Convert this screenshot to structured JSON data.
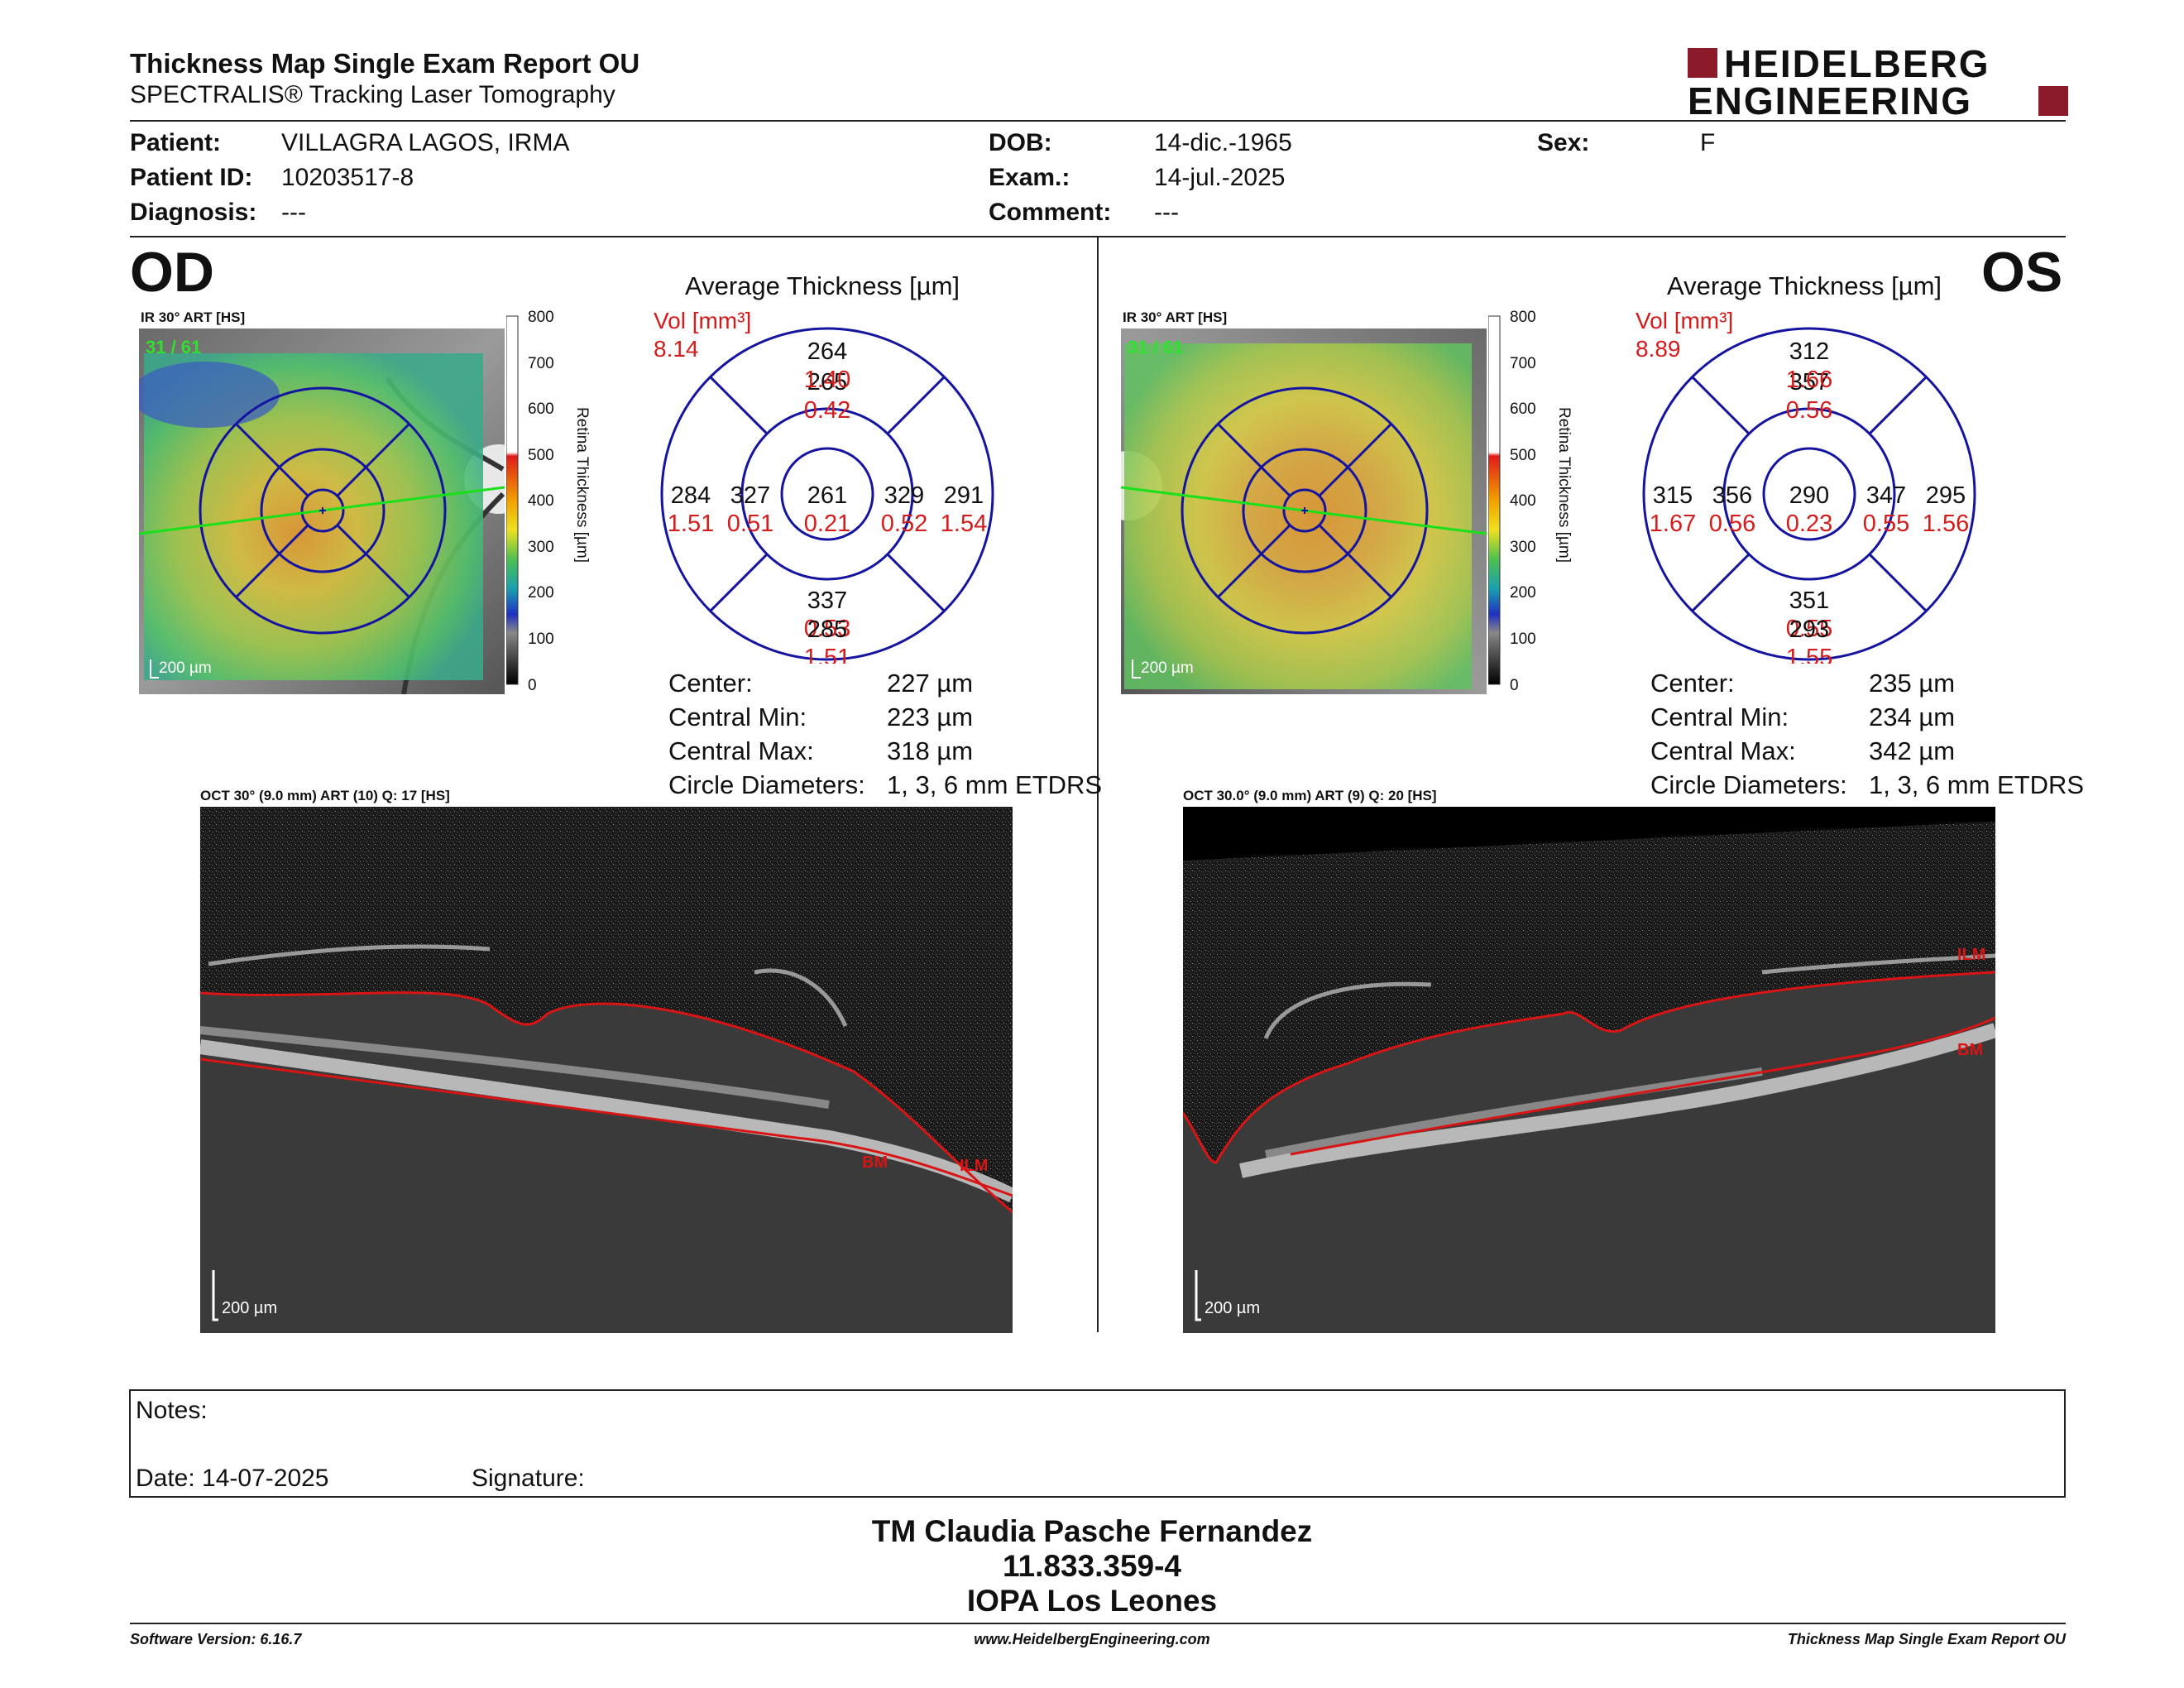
{
  "header": {
    "title": "Thickness Map Single Exam Report OU",
    "subtitle": "SPECTRALIS® Tracking Laser Tomography",
    "logo_line1": "HEIDELBERG",
    "logo_line2": "ENGINEERING",
    "brand_color": "#8b1a2b"
  },
  "patient": {
    "patient_label": "Patient:",
    "patient_value": "VILLAGRA LAGOS, IRMA",
    "id_label": "Patient ID:",
    "id_value": "10203517-8",
    "diag_label": "Diagnosis:",
    "diag_value": "---",
    "dob_label": "DOB:",
    "dob_value": "14-dic.-1965",
    "exam_label": "Exam.:",
    "exam_value": "14-jul.-2025",
    "comment_label": "Comment:",
    "comment_value": "---",
    "sex_label": "Sex:",
    "sex_value": "F"
  },
  "od": {
    "eye": "OD",
    "ir_label": "IR 30° ART [HS]",
    "ir_counter": "31 / 61",
    "scale": "200 µm",
    "avg_title": "Average Thickness [µm]",
    "vol_label": "Vol [mm³]",
    "vol_value": "8.14",
    "sectors": {
      "center": [
        "261",
        "0.21"
      ],
      "inner_sup": [
        "265",
        "0.42"
      ],
      "inner_inf": [
        "337",
        "0.53"
      ],
      "inner_left": [
        "327",
        "0.51"
      ],
      "inner_right": [
        "329",
        "0.52"
      ],
      "outer_sup": [
        "264",
        "1.40"
      ],
      "outer_inf": [
        "285",
        "1.51"
      ],
      "outer_left": [
        "284",
        "1.51"
      ],
      "outer_right": [
        "291",
        "1.54"
      ]
    },
    "stats": [
      {
        "label": "Center:",
        "value": "227 µm"
      },
      {
        "label": "Central Min:",
        "value": "223 µm"
      },
      {
        "label": "Central Max:",
        "value": "318 µm"
      },
      {
        "label": "Circle Diameters:",
        "value": "1, 3, 6 mm ETDRS"
      }
    ],
    "oct_label": "OCT 30° (9.0 mm) ART (10) Q: 17 [HS]",
    "oct_scale": "200 µm",
    "bm": "BM",
    "ilm": "ILM"
  },
  "os": {
    "eye": "OS",
    "ir_label": "IR 30° ART [HS]",
    "ir_counter": "31 / 61",
    "scale": "200 µm",
    "avg_title": "Average Thickness [µm]",
    "vol_label": "Vol [mm³]",
    "vol_value": "8.89",
    "sectors": {
      "center": [
        "290",
        "0.23"
      ],
      "inner_sup": [
        "357",
        "0.56"
      ],
      "inner_inf": [
        "351",
        "0.55"
      ],
      "inner_left": [
        "356",
        "0.56"
      ],
      "inner_right": [
        "347",
        "0.55"
      ],
      "outer_sup": [
        "312",
        "1.66"
      ],
      "outer_inf": [
        "293",
        "1.55"
      ],
      "outer_left": [
        "315",
        "1.67"
      ],
      "outer_right": [
        "295",
        "1.56"
      ]
    },
    "stats": [
      {
        "label": "Center:",
        "value": "235 µm"
      },
      {
        "label": "Central Min:",
        "value": "234 µm"
      },
      {
        "label": "Central Max:",
        "value": "342 µm"
      },
      {
        "label": "Circle Diameters:",
        "value": "1, 3, 6 mm ETDRS"
      }
    ],
    "oct_label": "OCT 30.0° (9.0 mm) ART (9) Q: 20 [HS]",
    "oct_scale": "200 µm",
    "bm": "BM",
    "ilm": "ILM"
  },
  "colorbar": {
    "ticks": [
      "800",
      "700",
      "600",
      "500",
      "400",
      "300",
      "200",
      "100",
      "0"
    ],
    "label": "Retina Thickness [µm]"
  },
  "notes": {
    "notes_label": "Notes:",
    "date_label": "Date: 14-07-2025",
    "signature_label": "Signature:"
  },
  "signer": {
    "name": "TM Claudia Pasche Fernandez",
    "id": "11.833.359-4",
    "place": "IOPA Los Leones"
  },
  "footer": {
    "version": "Software Version: 6.16.7",
    "website": "www.HeidelbergEngineering.com",
    "report": "Thickness Map Single Exam Report OU"
  }
}
